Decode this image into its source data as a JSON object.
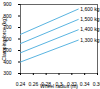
{
  "chart_data": {
    "type": "line",
    "x_label": "Wheel radius (m)",
    "y_label": "Clamping force (kg)",
    "x": [
      0.24,
      0.33
    ],
    "series": [
      {
        "name": "1,600 kg",
        "color": "#5ab4e0",
        "values": [
          640,
          860
        ]
      },
      {
        "name": "1,500 kg",
        "color": "#5ab4e0",
        "values": [
          560,
          770
        ]
      },
      {
        "name": "1,400 kg",
        "color": "#5ab4e0",
        "values": [
          480,
          680
        ]
      },
      {
        "name": "1,300 kg",
        "color": "#5ab4e0",
        "values": [
          400,
          590
        ]
      }
    ],
    "xlim": [
      0.24,
      0.36
    ],
    "xticks": [
      0.24,
      0.26,
      0.28,
      0.3,
      0.32,
      0.34,
      0.36
    ],
    "ylim": [
      300,
      900
    ],
    "yticks": [
      300,
      400,
      500,
      600,
      700,
      800,
      900
    ],
    "grid": false
  }
}
